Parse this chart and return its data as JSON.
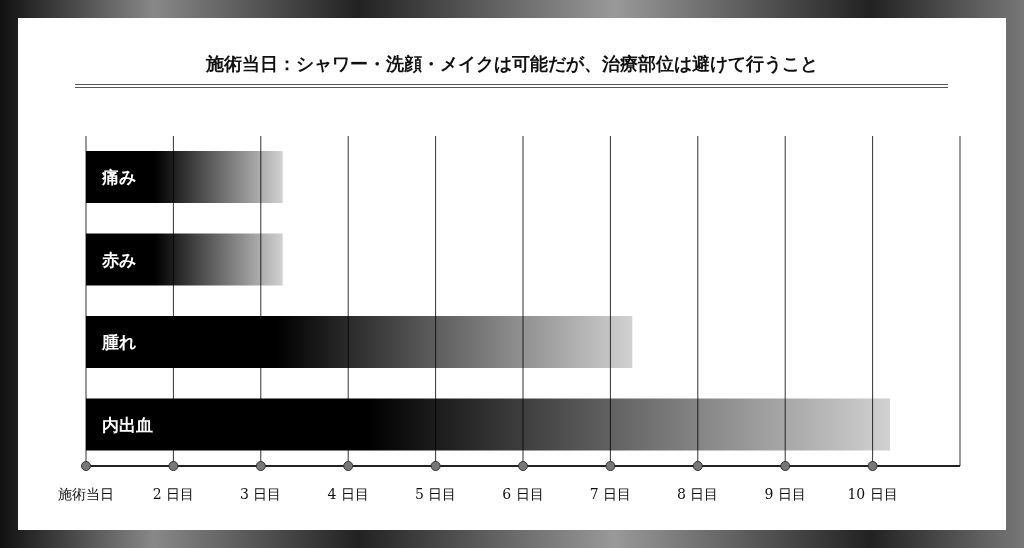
{
  "chart_data": {
    "type": "bar",
    "orientation": "horizontal",
    "title": "施術当日：シャワー・洗顔・メイクは可能だが、治療部位は避けて行うこと",
    "categories": [
      "痛み",
      "赤み",
      "腫れ",
      "内出血"
    ],
    "values": [
      3.25,
      3.25,
      7.25,
      10.2
    ],
    "color": "#000000",
    "xlim": [
      1,
      11
    ],
    "xticks": [
      {
        "value": 1,
        "label": "施術当日"
      },
      {
        "value": 2,
        "label": "2 日目"
      },
      {
        "value": 3,
        "label": "3 日目"
      },
      {
        "value": 4,
        "label": "4 日目"
      },
      {
        "value": 5,
        "label": "5 日目"
      },
      {
        "value": 6,
        "label": "6 日目"
      },
      {
        "value": 7,
        "label": "7 日目"
      },
      {
        "value": 8,
        "label": "8 日目"
      },
      {
        "value": 9,
        "label": "9 日目"
      },
      {
        "value": 10,
        "label": "10 日目"
      }
    ],
    "grid": "x",
    "legend": false
  }
}
